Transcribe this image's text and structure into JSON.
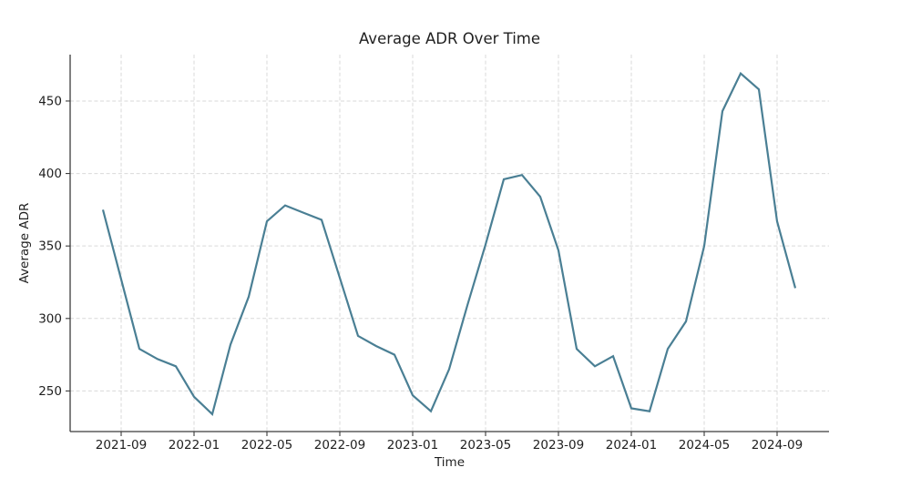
{
  "chart_data": {
    "type": "line",
    "title": "Average ADR Over Time",
    "xlabel": "Time",
    "ylabel": "Average ADR",
    "x": [
      "2021-08",
      "2021-09",
      "2021-10",
      "2021-11",
      "2021-12",
      "2022-01",
      "2022-02",
      "2022-03",
      "2022-04",
      "2022-05",
      "2022-06",
      "2022-07",
      "2022-08",
      "2022-09",
      "2022-10",
      "2022-11",
      "2022-12",
      "2023-01",
      "2023-02",
      "2023-03",
      "2023-04",
      "2023-05",
      "2023-06",
      "2023-07",
      "2023-08",
      "2023-09",
      "2023-10",
      "2023-11",
      "2023-12",
      "2024-01",
      "2024-02",
      "2024-03",
      "2024-04",
      "2024-05",
      "2024-06",
      "2024-07",
      "2024-08",
      "2024-09",
      "2024-10"
    ],
    "values": [
      375,
      327,
      279,
      272,
      267,
      246,
      234,
      282,
      315,
      367,
      378,
      373,
      368,
      328,
      288,
      281,
      275,
      247,
      236,
      265,
      309,
      351,
      396,
      399,
      384,
      347,
      279,
      267,
      274,
      238,
      236,
      279,
      298,
      350,
      443,
      469,
      458,
      367,
      321
    ],
    "x_tick_indices": [
      1,
      5,
      9,
      13,
      17,
      21,
      25,
      29,
      33,
      37
    ],
    "x_tick_labels": [
      "2021-09",
      "2022-01",
      "2022-05",
      "2022-09",
      "2023-01",
      "2023-05",
      "2023-09",
      "2024-01",
      "2024-05",
      "2024-09"
    ],
    "y_ticks": [
      250,
      300,
      350,
      400,
      450
    ],
    "ylim": [
      222,
      482
    ],
    "grid": true,
    "grid_style": "dashed",
    "legend": "none",
    "line_color": "#4a7f94",
    "grid_color": "#d9d9d9",
    "axis_color": "#3b3b3b",
    "text_color": "#1f1f1f",
    "background": "#ffffff"
  }
}
